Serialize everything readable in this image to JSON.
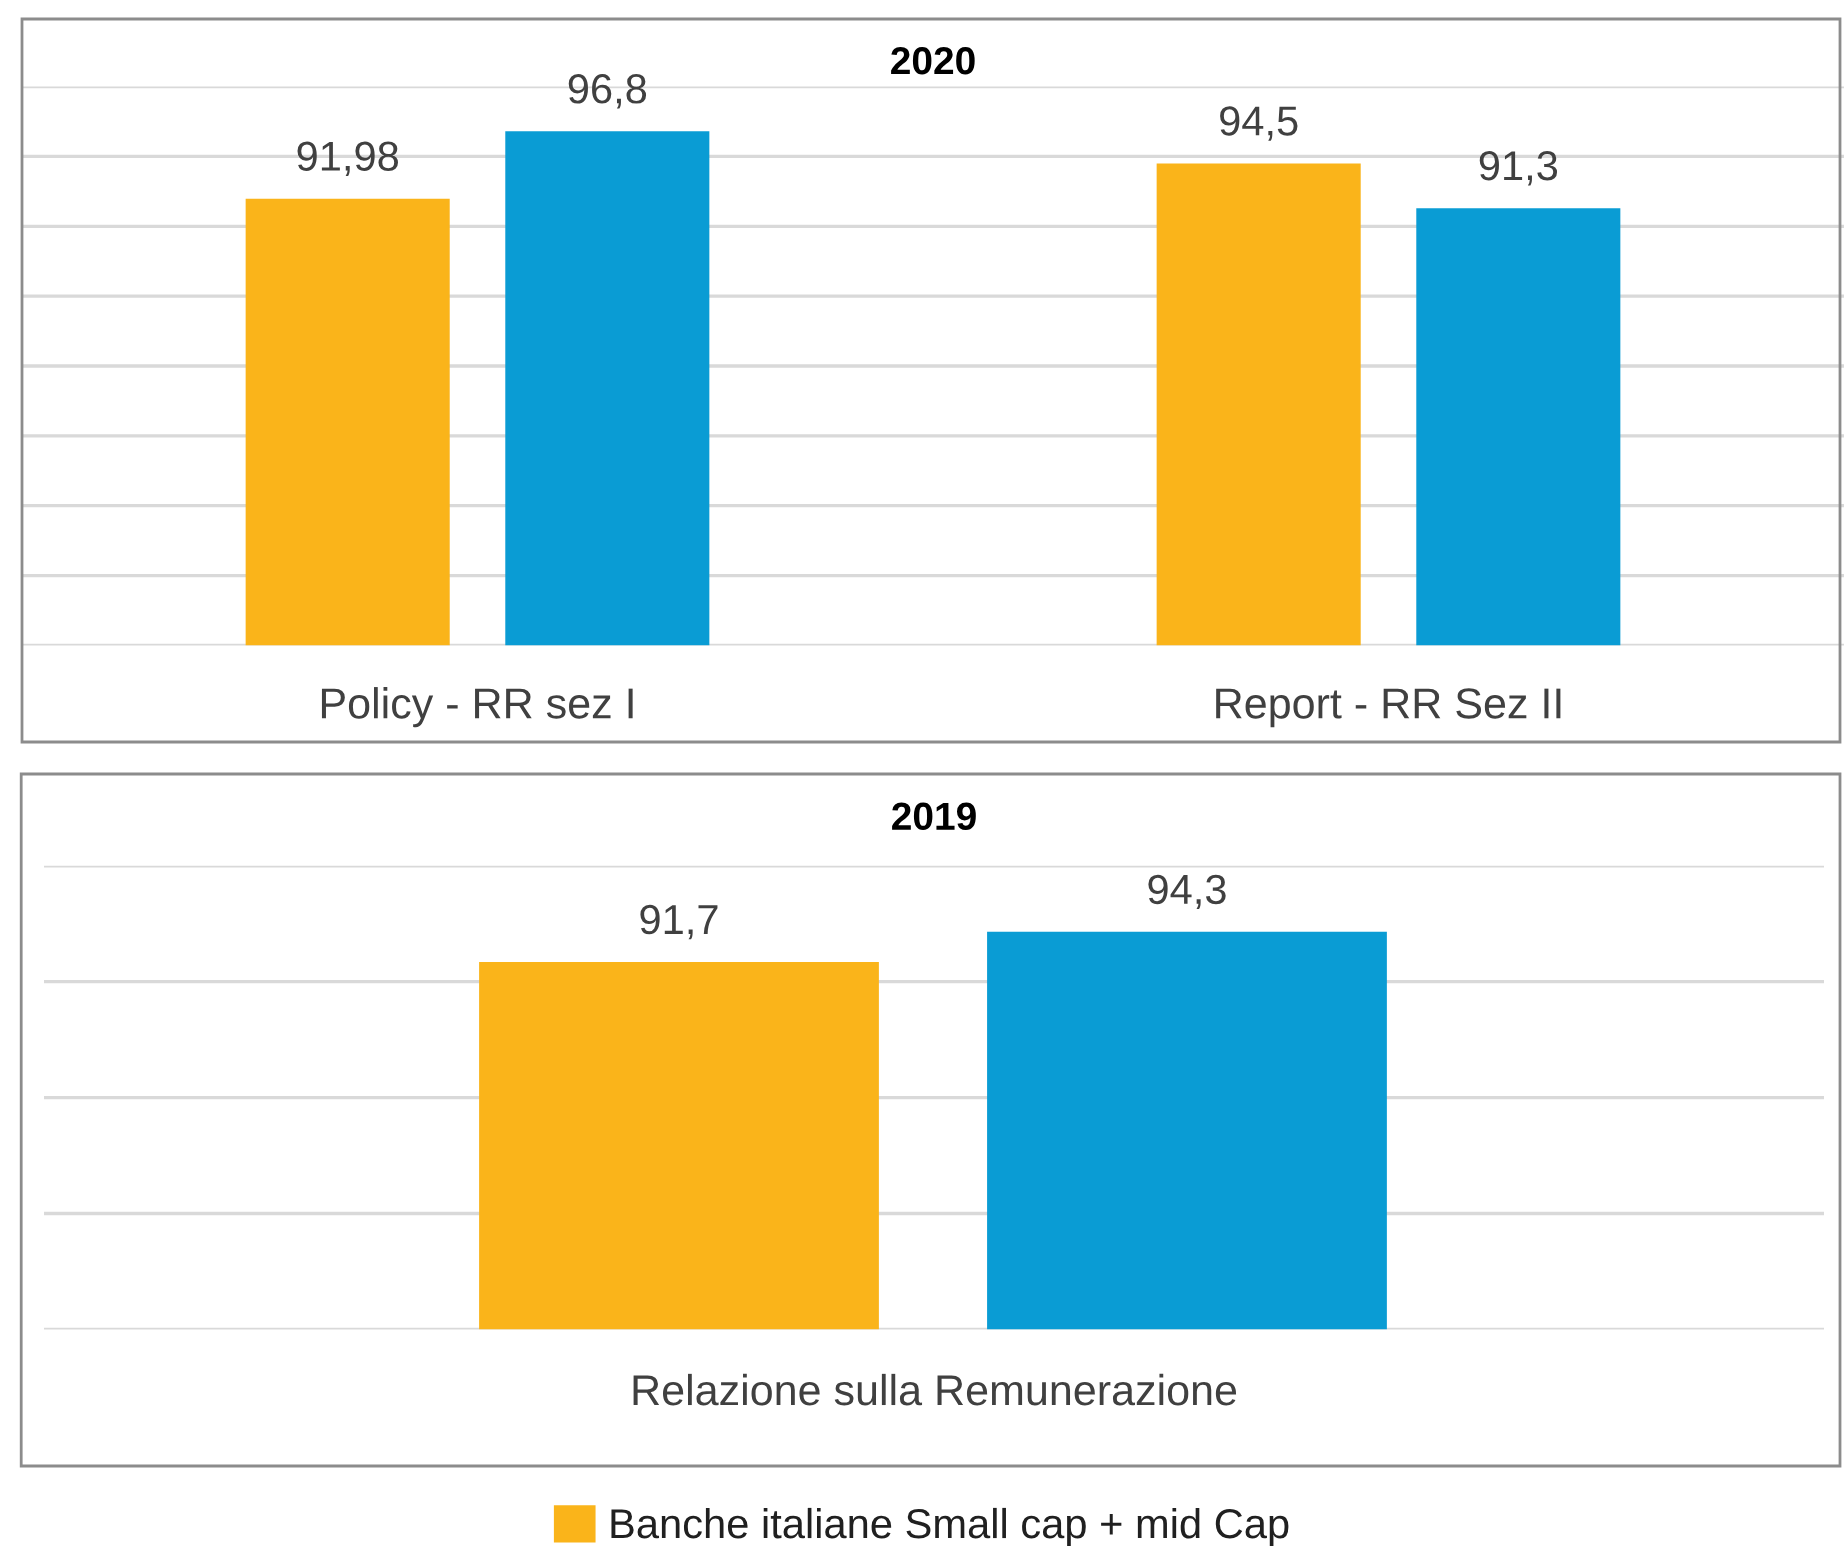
{
  "chart_data": [
    {
      "type": "bar",
      "title": "2020",
      "categories": [
        "Policy - RR sez I",
        "Report - RR Sez II"
      ],
      "series": [
        {
          "color": "#fab41a",
          "values": [
            91.98,
            94.5
          ],
          "value_labels": [
            "91,98",
            "94,5"
          ]
        },
        {
          "color": "#0a9cd4",
          "values": [
            96.8,
            91.3
          ],
          "value_labels": [
            "96,8",
            "91,3"
          ]
        }
      ],
      "ylim": [
        60,
        100
      ],
      "yticks": [
        {
          "value": 60,
          "label": null
        },
        {
          "value": 65,
          "label": null
        },
        {
          "value": 70,
          "label": null
        },
        {
          "value": 75,
          "label": null
        },
        {
          "value": 80,
          "label": null
        },
        {
          "value": 85,
          "label": null
        },
        {
          "value": 90,
          "label": null
        },
        {
          "value": 95,
          "label": null
        },
        {
          "value": 100,
          "label": null
        }
      ],
      "tick_labels": "x",
      "grid": "y"
    },
    {
      "type": "bar",
      "title": "2019",
      "xlabel": "Relazione sulla Remunerazione",
      "categories": [
        null,
        null
      ],
      "stacked": true,
      "series": [
        {
          "name": "Banche italiane Small cap + mid Cap",
          "color": "#fab41a",
          "values": [
            91.7,
            null
          ],
          "value_labels": [
            "91,7",
            null
          ]
        },
        {
          "color": "#0a9cd4",
          "values": [
            null,
            94.3
          ],
          "value_labels": [
            null,
            "94,3"
          ]
        }
      ],
      "ylim": [
        60,
        100
      ],
      "yticks": [
        {
          "value": 60,
          "label": null
        },
        {
          "value": 70,
          "label": null
        },
        {
          "value": 80,
          "label": null
        },
        {
          "value": 90,
          "label": null
        },
        {
          "value": 100,
          "label": null
        }
      ],
      "tick_labels": false,
      "grid": "y",
      "legend": "bottom"
    }
  ]
}
